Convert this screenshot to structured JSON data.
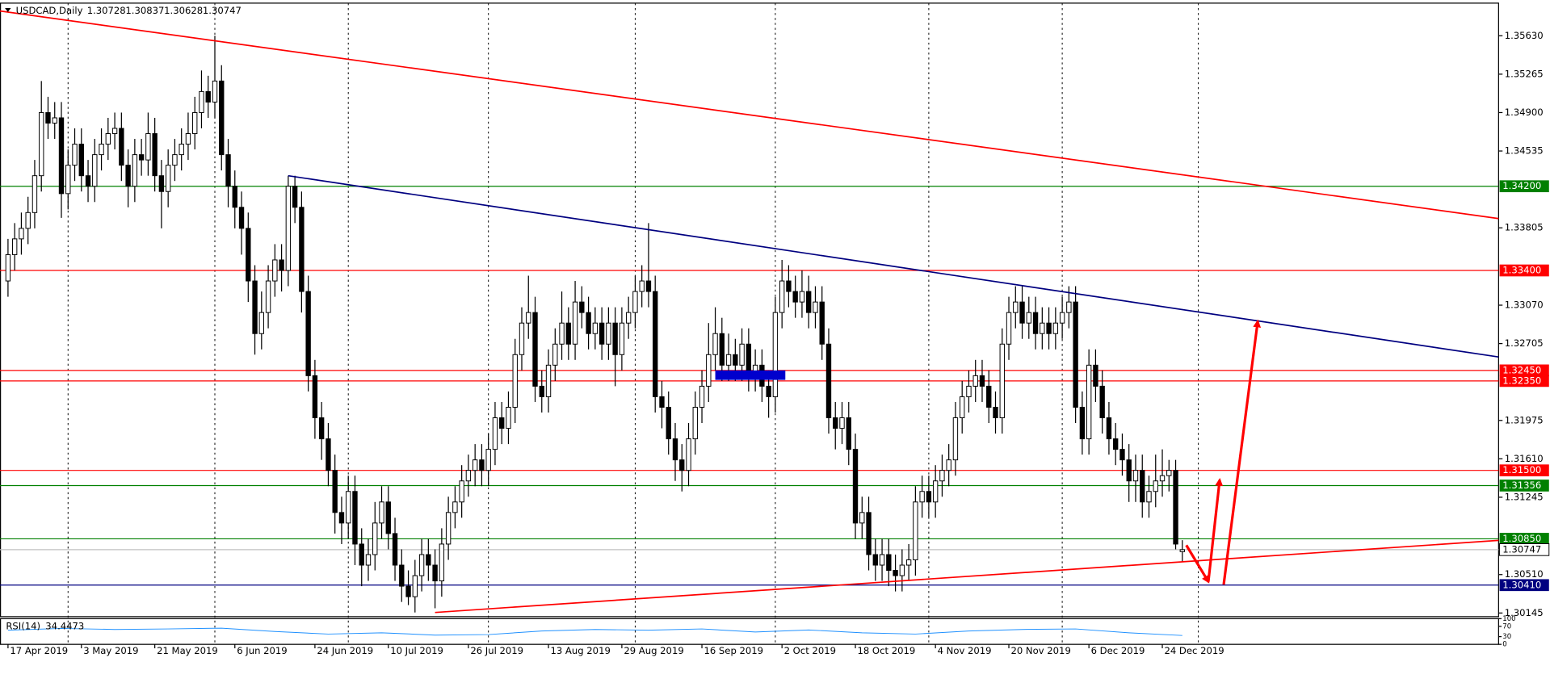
{
  "chart_data": {
    "type": "candlestick",
    "title": "USDCAD,Daily",
    "open": [
      1.333,
      1.3355,
      1.337,
      1.338,
      1.3395,
      1.343,
      1.349,
      1.348,
      1.3485,
      1.3413,
      1.344,
      1.346,
      1.343,
      1.342,
      1.345,
      1.346,
      1.347,
      1.3475,
      1.344,
      1.342,
      1.345,
      1.3445,
      1.347,
      1.343,
      1.3415,
      1.344,
      1.345,
      1.346,
      1.347,
      1.349,
      1.351,
      1.35,
      1.352,
      1.345,
      1.342,
      1.34,
      1.338,
      1.333,
      1.328,
      1.33,
      1.333,
      1.335,
      1.334,
      1.342,
      1.34,
      1.332,
      1.324,
      1.32,
      1.318,
      1.315,
      1.311,
      1.31,
      1.313,
      1.308,
      1.306,
      1.307,
      1.31,
      1.312,
      1.309,
      1.306,
      1.304,
      1.303,
      1.305,
      1.307,
      1.306,
      1.3045,
      1.308,
      1.311,
      1.312,
      1.314,
      1.315,
      1.316,
      1.315,
      1.317,
      1.32,
      1.319,
      1.321,
      1.326,
      1.329,
      1.33,
      1.323,
      1.322,
      1.325,
      1.327,
      1.329,
      1.327,
      1.331,
      1.33,
      1.328,
      1.329,
      1.327,
      1.329,
      1.326,
      1.329,
      1.33,
      1.332,
      1.333,
      1.332,
      1.322,
      1.321,
      1.318,
      1.316,
      1.315,
      1.318,
      1.321,
      1.323,
      1.326,
      1.328,
      1.325,
      1.326,
      1.325,
      1.327,
      1.324,
      1.325,
      1.323,
      1.322,
      1.33,
      1.333,
      1.332,
      1.331,
      1.332,
      1.33,
      1.331,
      1.327,
      1.32,
      1.319,
      1.32,
      1.317,
      1.31,
      1.311,
      1.307,
      1.306,
      1.307,
      1.3055,
      1.305,
      1.306,
      1.3065,
      1.312,
      1.313,
      1.312,
      1.314,
      1.315,
      1.316,
      1.32,
      1.322,
      1.323,
      1.324,
      1.323,
      1.321,
      1.32,
      1.327,
      1.33,
      1.331,
      1.329,
      1.33,
      1.328,
      1.329,
      1.328,
      1.329,
      1.33,
      1.331,
      1.321,
      1.318,
      1.325,
      1.323,
      1.32,
      1.318,
      1.317,
      1.316,
      1.314,
      1.315,
      1.312,
      1.313,
      1.314,
      1.3145,
      1.315,
      1.30728
    ],
    "high": [
      1.337,
      1.3385,
      1.3395,
      1.341,
      1.3445,
      1.352,
      1.3505,
      1.35,
      1.35,
      1.3455,
      1.3475,
      1.3475,
      1.3445,
      1.3465,
      1.3475,
      1.3485,
      1.349,
      1.349,
      1.3455,
      1.3465,
      1.3465,
      1.349,
      1.3485,
      1.3445,
      1.3455,
      1.3465,
      1.3475,
      1.349,
      1.3505,
      1.353,
      1.3525,
      1.3563,
      1.3535,
      1.3465,
      1.3435,
      1.3415,
      1.3395,
      1.3345,
      1.332,
      1.3345,
      1.3365,
      1.3365,
      1.343,
      1.343,
      1.3415,
      1.3335,
      1.3255,
      1.3215,
      1.3195,
      1.3165,
      1.3125,
      1.3145,
      1.3145,
      1.3095,
      1.3085,
      1.312,
      1.3135,
      1.3135,
      1.3105,
      1.3075,
      1.3055,
      1.3065,
      1.3085,
      1.3085,
      1.3075,
      1.3095,
      1.3125,
      1.3135,
      1.3155,
      1.3165,
      1.3175,
      1.3175,
      1.3185,
      1.3215,
      1.3215,
      1.3225,
      1.3275,
      1.3305,
      1.3335,
      1.3315,
      1.3245,
      1.3265,
      1.3285,
      1.332,
      1.3305,
      1.333,
      1.3325,
      1.3315,
      1.3305,
      1.3305,
      1.3305,
      1.3305,
      1.3305,
      1.3315,
      1.3335,
      1.3345,
      1.3385,
      1.3335,
      1.3235,
      1.3225,
      1.3195,
      1.3175,
      1.3195,
      1.3225,
      1.3245,
      1.329,
      1.3305,
      1.3295,
      1.328,
      1.3275,
      1.3285,
      1.3285,
      1.3265,
      1.3265,
      1.3245,
      1.3315,
      1.335,
      1.3345,
      1.3335,
      1.334,
      1.3335,
      1.3325,
      1.3325,
      1.3285,
      1.3215,
      1.3215,
      1.3215,
      1.3185,
      1.3125,
      1.3125,
      1.3085,
      1.3085,
      1.3085,
      1.307,
      1.3075,
      1.308,
      1.3135,
      1.3145,
      1.3145,
      1.3155,
      1.3165,
      1.3175,
      1.3215,
      1.3235,
      1.3245,
      1.3255,
      1.3255,
      1.3245,
      1.3225,
      1.3285,
      1.3315,
      1.3325,
      1.3325,
      1.3315,
      1.3315,
      1.3305,
      1.3305,
      1.3305,
      1.3315,
      1.3325,
      1.3325,
      1.3225,
      1.3265,
      1.3265,
      1.3245,
      1.3215,
      1.3195,
      1.3185,
      1.3175,
      1.3165,
      1.3165,
      1.3145,
      1.3165,
      1.317,
      1.316,
      1.316,
      1.30837
    ],
    "low": [
      1.3315,
      1.334,
      1.3355,
      1.3365,
      1.338,
      1.3415,
      1.3465,
      1.3465,
      1.339,
      1.3398,
      1.3425,
      1.3415,
      1.3405,
      1.3405,
      1.3435,
      1.3445,
      1.3455,
      1.3425,
      1.34,
      1.3405,
      1.343,
      1.343,
      1.3415,
      1.338,
      1.34,
      1.3425,
      1.3435,
      1.3445,
      1.3455,
      1.3475,
      1.3485,
      1.3485,
      1.3435,
      1.34,
      1.338,
      1.3355,
      1.331,
      1.326,
      1.3265,
      1.3285,
      1.3315,
      1.332,
      1.3325,
      1.3385,
      1.33,
      1.3225,
      1.318,
      1.316,
      1.3135,
      1.309,
      1.308,
      1.3085,
      1.306,
      1.304,
      1.3045,
      1.3055,
      1.3085,
      1.3075,
      1.3045,
      1.3025,
      1.3022,
      1.3015,
      1.3035,
      1.3045,
      1.3019,
      1.303,
      1.3065,
      1.3095,
      1.3105,
      1.3125,
      1.3135,
      1.3135,
      1.3135,
      1.3155,
      1.3175,
      1.3175,
      1.3195,
      1.3245,
      1.3275,
      1.3215,
      1.3205,
      1.3205,
      1.3235,
      1.3255,
      1.3255,
      1.3255,
      1.3285,
      1.3265,
      1.3265,
      1.3255,
      1.3255,
      1.323,
      1.3245,
      1.3275,
      1.3285,
      1.3305,
      1.3305,
      1.3205,
      1.319,
      1.3165,
      1.314,
      1.313,
      1.3135,
      1.3165,
      1.3195,
      1.3215,
      1.3245,
      1.3235,
      1.3235,
      1.3235,
      1.3235,
      1.3225,
      1.3225,
      1.3215,
      1.32,
      1.3205,
      1.3285,
      1.3305,
      1.3295,
      1.3295,
      1.3285,
      1.3285,
      1.3255,
      1.3185,
      1.317,
      1.3175,
      1.3155,
      1.3085,
      1.3085,
      1.3055,
      1.3045,
      1.3045,
      1.304,
      1.3035,
      1.3035,
      1.3045,
      1.305,
      1.3105,
      1.3105,
      1.3105,
      1.3125,
      1.3135,
      1.3145,
      1.3185,
      1.3205,
      1.3215,
      1.3215,
      1.3195,
      1.3185,
      1.3185,
      1.3255,
      1.3285,
      1.3275,
      1.3275,
      1.3265,
      1.3265,
      1.3265,
      1.3265,
      1.3275,
      1.3285,
      1.3195,
      1.3165,
      1.3165,
      1.3215,
      1.3185,
      1.3165,
      1.3155,
      1.3145,
      1.312,
      1.312,
      1.3105,
      1.3105,
      1.3115,
      1.3125,
      1.313,
      1.3075,
      1.30628
    ],
    "close": [
      1.3355,
      1.337,
      1.338,
      1.3395,
      1.343,
      1.349,
      1.348,
      1.3485,
      1.3413,
      1.344,
      1.346,
      1.343,
      1.342,
      1.345,
      1.346,
      1.347,
      1.3475,
      1.344,
      1.342,
      1.345,
      1.3445,
      1.347,
      1.343,
      1.3415,
      1.344,
      1.345,
      1.346,
      1.347,
      1.349,
      1.351,
      1.35,
      1.352,
      1.345,
      1.342,
      1.34,
      1.338,
      1.333,
      1.328,
      1.33,
      1.333,
      1.335,
      1.334,
      1.342,
      1.34,
      1.332,
      1.324,
      1.32,
      1.318,
      1.315,
      1.311,
      1.31,
      1.313,
      1.308,
      1.306,
      1.307,
      1.31,
      1.312,
      1.309,
      1.306,
      1.304,
      1.303,
      1.305,
      1.307,
      1.306,
      1.3045,
      1.308,
      1.311,
      1.312,
      1.314,
      1.315,
      1.316,
      1.315,
      1.317,
      1.32,
      1.319,
      1.321,
      1.326,
      1.329,
      1.33,
      1.323,
      1.322,
      1.325,
      1.327,
      1.329,
      1.327,
      1.331,
      1.33,
      1.328,
      1.329,
      1.327,
      1.329,
      1.326,
      1.329,
      1.33,
      1.332,
      1.333,
      1.332,
      1.322,
      1.321,
      1.318,
      1.316,
      1.315,
      1.318,
      1.321,
      1.323,
      1.326,
      1.328,
      1.325,
      1.326,
      1.325,
      1.327,
      1.324,
      1.325,
      1.323,
      1.322,
      1.33,
      1.333,
      1.332,
      1.331,
      1.332,
      1.33,
      1.331,
      1.327,
      1.32,
      1.319,
      1.32,
      1.317,
      1.31,
      1.311,
      1.307,
      1.306,
      1.307,
      1.3055,
      1.305,
      1.306,
      1.3065,
      1.312,
      1.313,
      1.312,
      1.314,
      1.315,
      1.316,
      1.32,
      1.322,
      1.323,
      1.324,
      1.323,
      1.321,
      1.32,
      1.327,
      1.33,
      1.331,
      1.329,
      1.33,
      1.328,
      1.329,
      1.328,
      1.329,
      1.33,
      1.331,
      1.321,
      1.318,
      1.325,
      1.323,
      1.32,
      1.318,
      1.317,
      1.316,
      1.314,
      1.315,
      1.312,
      1.313,
      1.314,
      1.3145,
      1.315,
      1.308,
      1.30747
    ],
    "bull_color": "#ffffff",
    "bear_color": "#000000",
    "wick_color": "#000000",
    "xlim": [
      -1.2,
      223.4
    ],
    "xticks": [
      {
        "value": 0,
        "label": "17 Apr 2019"
      },
      {
        "value": 11,
        "label": "3 May 2019"
      },
      {
        "value": 22,
        "label": "21 May 2019"
      },
      {
        "value": 34,
        "label": "6 Jun 2019"
      },
      {
        "value": 46,
        "label": "24 Jun 2019"
      },
      {
        "value": 57,
        "label": "10 Jul 2019"
      },
      {
        "value": 69,
        "label": "26 Jul 2019"
      },
      {
        "value": 81,
        "label": "13 Aug 2019"
      },
      {
        "value": 92,
        "label": "29 Aug 2019"
      },
      {
        "value": 104,
        "label": "16 Sep 2019"
      },
      {
        "value": 116,
        "label": "2 Oct 2019"
      },
      {
        "value": 127,
        "label": "18 Oct 2019"
      },
      {
        "value": 139,
        "label": "4 Nov 2019"
      },
      {
        "value": 150,
        "label": "20 Nov 2019"
      },
      {
        "value": 162,
        "label": "6 Dec 2019"
      },
      {
        "value": 173,
        "label": "24 Dec 2019"
      }
    ],
    "xgrid": [
      9,
      31,
      51,
      72,
      94,
      115,
      138,
      158,
      178.4
    ],
    "ylim": [
      1.3011,
      1.3594
    ],
    "yticks": [
      {
        "value": 1.3563,
        "label": "1.35630"
      },
      1.35265,
      {
        "value": 1.349,
        "label": "1.34900"
      },
      1.34535,
      1.33805,
      {
        "value": 1.3307,
        "label": "1.33070"
      },
      1.32705,
      1.31975,
      {
        "value": 1.3161,
        "label": "1.31610"
      },
      1.31245,
      {
        "value": 1.3051,
        "label": "1.30510"
      },
      1.30145
    ],
    "levels": [
      {
        "price": 1.342,
        "label": "1.34200",
        "color": "#008000"
      },
      {
        "price": 1.334,
        "label": "1.33400",
        "color": "#ff0000"
      },
      {
        "price": 1.3245,
        "label": "1.32450",
        "color": "#ff0000"
      },
      {
        "price": 1.3235,
        "label": "1.32350",
        "color": "#ff0000"
      },
      {
        "price": 1.315,
        "label": "1.31500",
        "color": "#ff0000"
      },
      {
        "price": 1.31356,
        "color": "#008000"
      },
      {
        "price": 1.3085,
        "label": "1.30850",
        "color": "#008000"
      },
      {
        "price": 1.3041,
        "label": "1.30410",
        "color": "#000080"
      }
    ],
    "price_line_color": "#c0c0c0",
    "trendlines": [
      {
        "color": "#ff0000",
        "points": [
          [
            -1.2,
            1.35865
          ],
          [
            223.4,
            1.33893
          ]
        ]
      },
      {
        "color": "#000080",
        "points": [
          [
            42,
            1.343
          ],
          [
            223.4,
            1.32578
          ]
        ]
      },
      {
        "color": "#ff0000",
        "points": [
          [
            64,
            1.3015
          ],
          [
            223.4,
            1.30835
          ]
        ]
      }
    ],
    "rectangles": [
      {
        "color": "#0000cd",
        "x": [
          106,
          116.5
        ],
        "y": [
          1.3236,
          1.3245
        ]
      }
    ],
    "arrows": [
      {
        "color": "#ff0000",
        "points": [
          [
            176.6,
            1.30789
          ],
          [
            179.9,
            1.30442
          ]
        ]
      },
      {
        "color": "#ff0000",
        "points": [
          [
            179.9,
            1.30442
          ],
          [
            181.6,
            1.3141
          ]
        ]
      },
      {
        "color": "#ff0000",
        "points": [
          [
            182.2,
            1.30415
          ],
          [
            187.3,
            1.32916
          ]
        ]
      }
    ],
    "rsi": {
      "label": "RSI(14)",
      "color": "#1e90ff",
      "x": [
        0,
        8,
        16,
        24,
        32,
        40,
        48,
        56,
        64,
        72,
        80,
        88,
        96,
        104,
        112,
        120,
        128,
        136,
        144,
        152,
        160,
        168,
        176
      ],
      "values": [
        55,
        62,
        58,
        60,
        63,
        50,
        40,
        45,
        36,
        38,
        52,
        58,
        55,
        60,
        48,
        56,
        45,
        40,
        52,
        58,
        60,
        45,
        34.4473
      ],
      "ylim": [
        0,
        100
      ],
      "yticks": [
        100,
        70,
        30,
        0
      ]
    }
  }
}
